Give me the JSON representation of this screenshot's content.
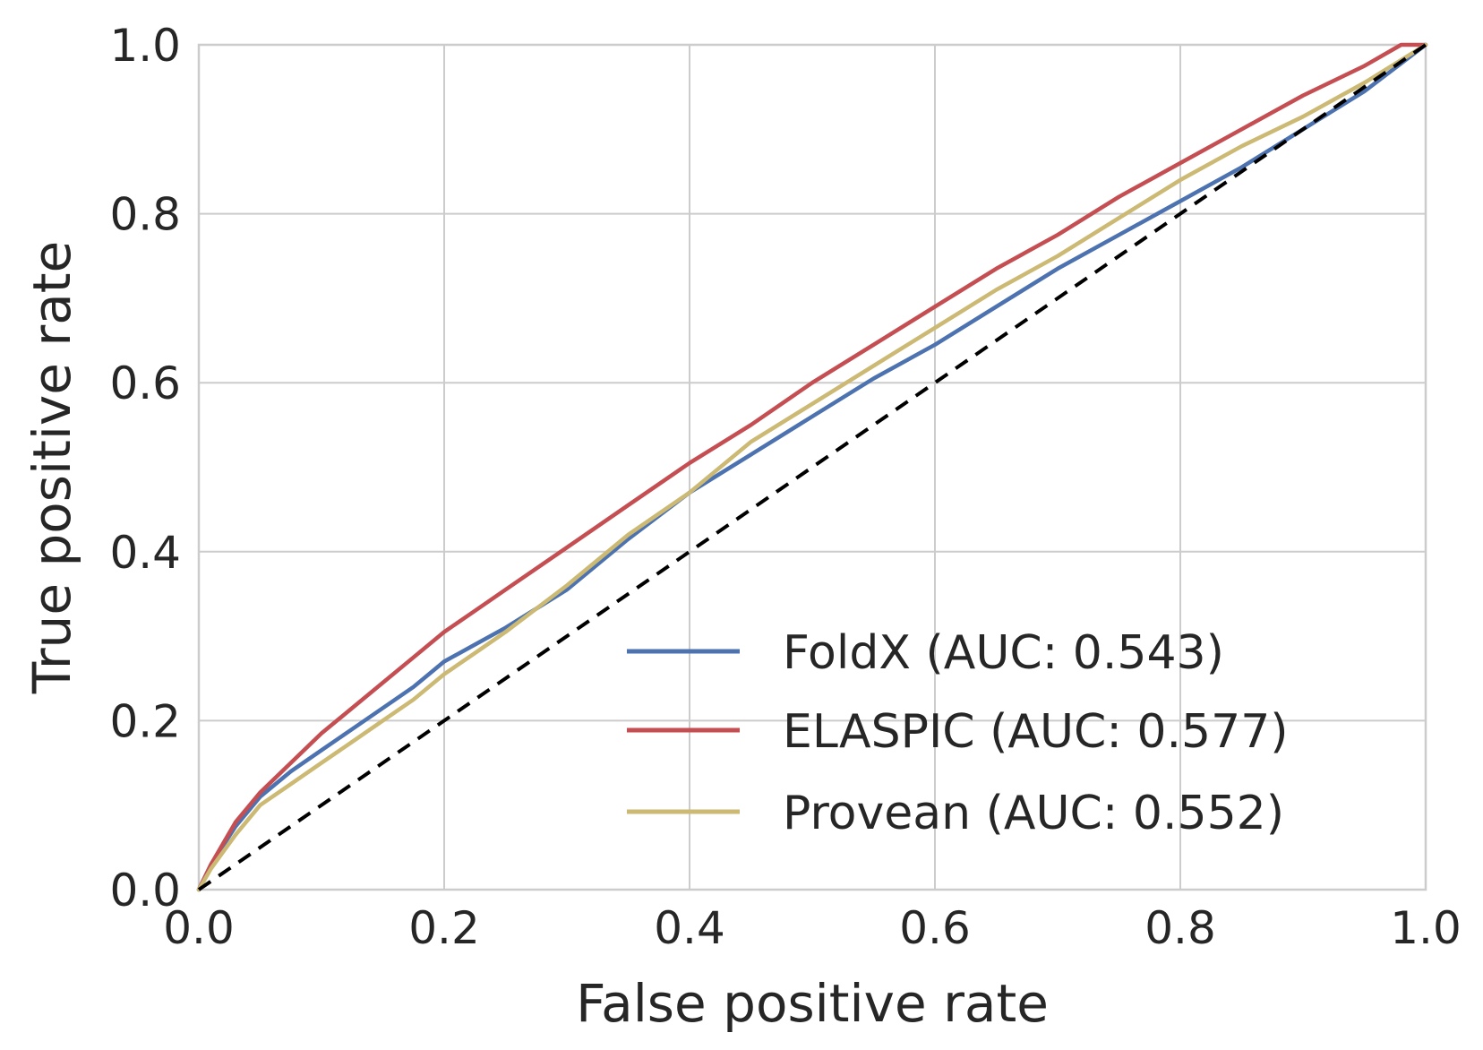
{
  "chart_data": {
    "type": "line",
    "xlabel": "False positive rate",
    "ylabel": "True positive rate",
    "xlim": [
      0.0,
      1.0
    ],
    "ylim": [
      0.0,
      1.0
    ],
    "xticks": [
      "0.0",
      "0.2",
      "0.4",
      "0.6",
      "0.8",
      "1.0"
    ],
    "yticks": [
      "0.0",
      "0.2",
      "0.4",
      "0.6",
      "0.8",
      "1.0"
    ],
    "grid": true,
    "legend_position": "lower-right",
    "series": [
      {
        "name": "FoldX (AUC: 0.543)",
        "color": "#4c72b0",
        "x": [
          0,
          0.01,
          0.03,
          0.05,
          0.075,
          0.1,
          0.125,
          0.15,
          0.175,
          0.2,
          0.225,
          0.25,
          0.3,
          0.35,
          0.4,
          0.45,
          0.5,
          0.55,
          0.6,
          0.65,
          0.7,
          0.75,
          0.8,
          0.85,
          0.9,
          0.95,
          1.0
        ],
        "y": [
          0,
          0.03,
          0.075,
          0.11,
          0.14,
          0.165,
          0.19,
          0.215,
          0.24,
          0.27,
          0.29,
          0.31,
          0.355,
          0.415,
          0.47,
          0.515,
          0.56,
          0.605,
          0.645,
          0.69,
          0.735,
          0.775,
          0.815,
          0.855,
          0.9,
          0.945,
          1.0
        ]
      },
      {
        "name": "ELASPIC (AUC: 0.577)",
        "color": "#c44e52",
        "x": [
          0,
          0.01,
          0.03,
          0.05,
          0.075,
          0.1,
          0.125,
          0.15,
          0.175,
          0.2,
          0.225,
          0.25,
          0.3,
          0.35,
          0.4,
          0.45,
          0.5,
          0.55,
          0.6,
          0.65,
          0.7,
          0.75,
          0.8,
          0.85,
          0.9,
          0.95,
          0.98,
          1.0
        ],
        "y": [
          0,
          0.03,
          0.08,
          0.115,
          0.15,
          0.185,
          0.215,
          0.245,
          0.275,
          0.305,
          0.33,
          0.355,
          0.405,
          0.455,
          0.505,
          0.55,
          0.6,
          0.645,
          0.69,
          0.735,
          0.775,
          0.82,
          0.86,
          0.9,
          0.94,
          0.975,
          1.0,
          1.0
        ]
      },
      {
        "name": "Provean (AUC: 0.552)",
        "color": "#ccb974",
        "x": [
          0,
          0.01,
          0.03,
          0.05,
          0.075,
          0.1,
          0.125,
          0.15,
          0.175,
          0.2,
          0.225,
          0.25,
          0.3,
          0.35,
          0.4,
          0.45,
          0.5,
          0.55,
          0.6,
          0.65,
          0.7,
          0.75,
          0.8,
          0.85,
          0.9,
          0.95,
          1.0
        ],
        "y": [
          0,
          0.025,
          0.065,
          0.1,
          0.125,
          0.15,
          0.175,
          0.2,
          0.225,
          0.255,
          0.28,
          0.305,
          0.36,
          0.42,
          0.47,
          0.53,
          0.575,
          0.62,
          0.665,
          0.71,
          0.75,
          0.795,
          0.84,
          0.88,
          0.915,
          0.955,
          1.0
        ]
      }
    ],
    "reference_line": {
      "x": [
        0,
        1
      ],
      "y": [
        0,
        1
      ],
      "style": "dashed",
      "color": "#000000"
    }
  }
}
